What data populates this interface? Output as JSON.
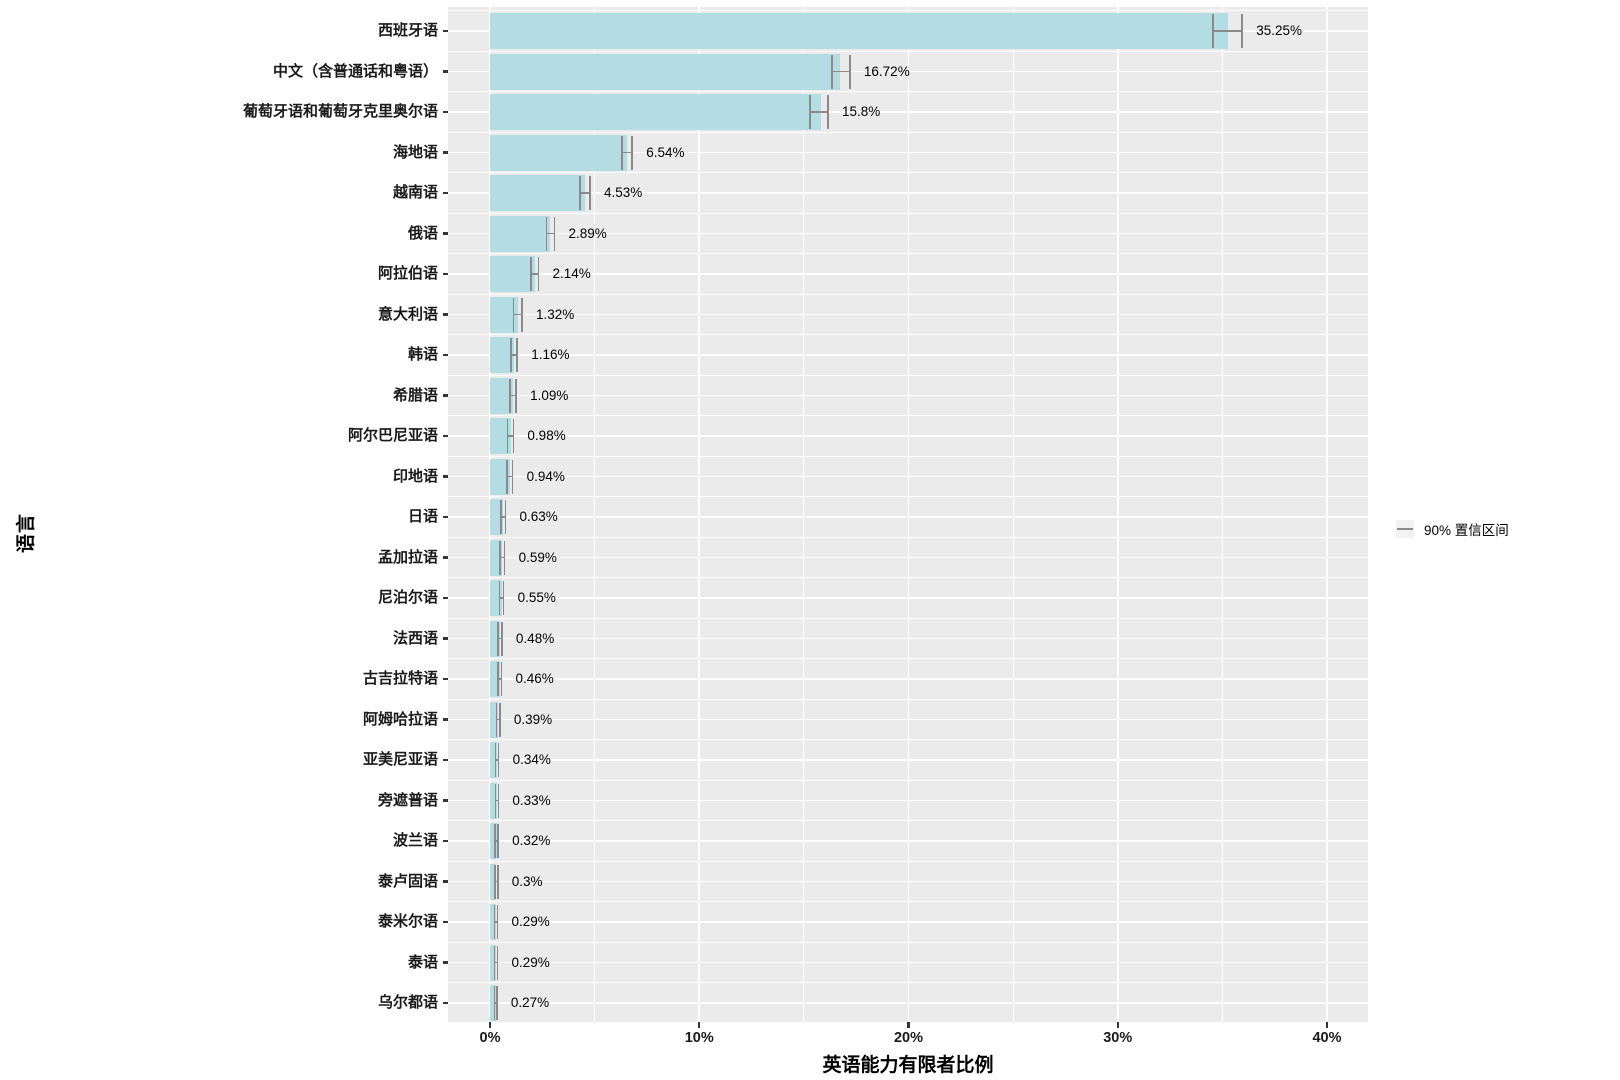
{
  "chart_data": {
    "type": "bar",
    "orientation": "horizontal",
    "title": "",
    "xlabel": "英语能力有限者比例",
    "ylabel": "语言",
    "legend_label": "90% 置信区间",
    "legend_position": "right",
    "grid": "on",
    "xlim": [
      -2,
      42
    ],
    "x_tick_labels": [
      "0%",
      "10%",
      "20%",
      "30%",
      "40%"
    ],
    "x_tick_values": [
      0,
      10,
      20,
      30,
      40
    ],
    "x_minor_tick_values": [
      5,
      15,
      25,
      35
    ],
    "categories": [
      "西班牙语",
      "中文（含普通话和粤语）",
      "葡萄牙语和葡萄牙克里奥尔语",
      "海地语",
      "越南语",
      "俄语",
      "阿拉伯语",
      "意大利语",
      "韩语",
      "希腊语",
      "阿尔巴尼亚语",
      "印地语",
      "日语",
      "孟加拉语",
      "尼泊尔语",
      "法西语",
      "古吉拉特语",
      "阿姆哈拉语",
      "亚美尼亚语",
      "旁遮普语",
      "波兰语",
      "泰卢固语",
      "泰米尔语",
      "泰语",
      "乌尔都语"
    ],
    "values": [
      35.25,
      16.72,
      15.8,
      6.54,
      4.53,
      2.89,
      2.14,
      1.32,
      1.16,
      1.09,
      0.98,
      0.94,
      0.63,
      0.59,
      0.55,
      0.48,
      0.46,
      0.39,
      0.34,
      0.33,
      0.32,
      0.3,
      0.29,
      0.29,
      0.27
    ],
    "value_labels": [
      "35.25%",
      "16.72%",
      "15.8%",
      "6.54%",
      "4.53%",
      "2.89%",
      "2.14%",
      "1.32%",
      "1.16%",
      "1.09%",
      "0.98%",
      "0.94%",
      "0.63%",
      "0.59%",
      "0.55%",
      "0.48%",
      "0.46%",
      "0.39%",
      "0.34%",
      "0.33%",
      "0.32%",
      "0.3%",
      "0.29%",
      "0.29%",
      "0.27%"
    ],
    "ci_low": [
      34.55,
      16.35,
      15.3,
      6.3,
      4.3,
      2.7,
      1.95,
      1.12,
      1.0,
      0.95,
      0.84,
      0.8,
      0.52,
      0.48,
      0.45,
      0.39,
      0.37,
      0.31,
      0.27,
      0.26,
      0.25,
      0.23,
      0.22,
      0.22,
      0.21
    ],
    "ci_high": [
      35.95,
      17.2,
      16.15,
      6.8,
      4.78,
      3.08,
      2.32,
      1.53,
      1.3,
      1.25,
      1.12,
      1.08,
      0.74,
      0.7,
      0.65,
      0.57,
      0.55,
      0.47,
      0.41,
      0.4,
      0.39,
      0.37,
      0.36,
      0.36,
      0.33
    ],
    "colors": {
      "bar_fill": "#B3DCE3",
      "panel_background": "#EBEBEB",
      "gridline": "#FFFFFF",
      "error_bar": "#8A8A8A",
      "axis_text": "#1A1A1A",
      "tick_mark": "#333333"
    }
  }
}
